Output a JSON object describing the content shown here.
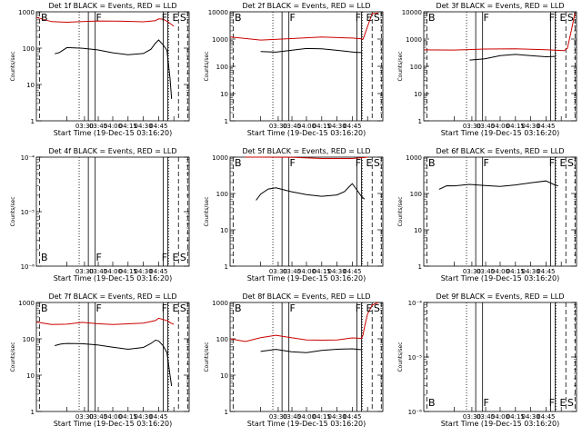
{
  "chart_data": [
    {
      "type": "line",
      "title": "Det 1f BLACK = Events, RED = LLD",
      "xlabel": "Start Time (19-Dec-15 03:16:20)",
      "ylabel": "Counts/sec",
      "yscale": "log",
      "ylim": [
        1,
        1000
      ],
      "ytick_labels": [
        "1",
        "10",
        "100",
        "1000"
      ],
      "xtick_labels": [
        "03:30",
        "03:45",
        "04:00",
        "04:15",
        "04:30",
        "04:45"
      ],
      "markers": [
        "B",
        "F",
        "F",
        "E",
        "S"
      ],
      "series": [
        {
          "color": "#000000",
          "x": [
            0.12,
            0.15,
            0.2,
            0.3,
            0.4,
            0.5,
            0.6,
            0.7,
            0.75,
            0.78,
            0.8,
            0.83,
            0.855,
            0.875,
            0.885
          ],
          "y": [
            70,
            80,
            110,
            100,
            85,
            70,
            65,
            75,
            100,
            140,
            160,
            115,
            85,
            15,
            4
          ]
        },
        {
          "color": "#cc0000",
          "x": [
            0.0,
            0.1,
            0.2,
            0.3,
            0.4,
            0.5,
            0.6,
            0.7,
            0.78,
            0.8,
            0.83,
            0.86,
            0.88,
            0.9
          ],
          "y": [
            700,
            570,
            550,
            540,
            530,
            520,
            540,
            560,
            610,
            650,
            600,
            500,
            450,
            400
          ]
        }
      ]
    },
    {
      "type": "line",
      "title": "Det 2f BLACK = Events, RED = LLD",
      "xlabel": "Start Time (19-Dec-15 03:16:20)",
      "ylabel": "Counts/sec",
      "yscale": "log",
      "ylim": [
        1,
        10000
      ],
      "ytick_labels": [
        "1",
        "10",
        "100",
        "1000",
        "10000"
      ],
      "xtick_labels": [
        "03:30",
        "03:45",
        "04:00",
        "04:15",
        "04:30",
        "04:45"
      ],
      "markers": [
        "B",
        "F",
        "F",
        "E",
        "S"
      ],
      "series": [
        {
          "color": "#000000",
          "x": [
            0.2,
            0.3,
            0.4,
            0.5,
            0.6,
            0.7,
            0.8,
            0.84,
            0.86
          ],
          "y": [
            350,
            360,
            390,
            420,
            400,
            380,
            360,
            350,
            320
          ]
        },
        {
          "color": "#cc0000",
          "x": [
            0.0,
            0.2,
            0.4,
            0.6,
            0.8,
            0.86,
            0.87,
            0.88,
            0.9,
            0.93,
            0.97
          ],
          "y": [
            1200,
            1000,
            1050,
            1100,
            1000,
            1000,
            1050,
            1500,
            3000,
            8000,
            9000
          ]
        }
      ]
    },
    {
      "type": "line",
      "title": "Det 3f BLACK = Events, RED = LLD",
      "xlabel": "Start Time (19-Dec-15 03:16:20)",
      "ylabel": "Counts/sec",
      "yscale": "log",
      "ylim": [
        1,
        10000
      ],
      "ytick_labels": [
        "1",
        "10",
        "100",
        "1000",
        "10000"
      ],
      "xtick_labels": [
        "03:30",
        "03:45",
        "04:00",
        "04:15",
        "04:30",
        "04:45"
      ],
      "markers": [
        "B",
        "F",
        "F",
        "E",
        "S"
      ],
      "series": [
        {
          "color": "#000000",
          "x": [
            0.3,
            0.4,
            0.5,
            0.6,
            0.7,
            0.8,
            0.86
          ],
          "y": [
            170,
            190,
            230,
            250,
            240,
            240,
            230
          ]
        },
        {
          "color": "#cc0000",
          "x": [
            0.0,
            0.2,
            0.4,
            0.6,
            0.8,
            0.92,
            0.94,
            0.96,
            0.99
          ],
          "y": [
            400,
            400,
            400,
            400,
            400,
            400,
            500,
            1500,
            9000
          ]
        }
      ]
    },
    {
      "type": "line",
      "title": "Det 4f BLACK = Events, RED = LLD",
      "xlabel": "Start Time (19-Dec-15 03:16:20)",
      "ylabel": "Counts/sec",
      "yscale": "log",
      "ylim": [
        1e-06,
        0.0001
      ],
      "ytick_labels": [
        "10⁻⁶",
        "10⁻⁵",
        "10⁻⁴"
      ],
      "xtick_labels": [
        "03:30",
        "03:45",
        "04:00",
        "04:15",
        "04:30",
        "04:45"
      ],
      "markers": [
        "B",
        "F",
        "F",
        "E",
        "S"
      ],
      "series": []
    },
    {
      "type": "line",
      "title": "Det 5f BLACK = Events, RED = LLD",
      "xlabel": "Start Time (19-Dec-15 03:16:20)",
      "ylabel": "Counts/sec",
      "yscale": "log",
      "ylim": [
        1,
        1000
      ],
      "ytick_labels": [
        "1",
        "10",
        "100",
        "1000"
      ],
      "xtick_labels": [
        "03:30",
        "03:45",
        "04:00",
        "04:15",
        "04:30",
        "04:45"
      ],
      "markers": [
        "B",
        "F",
        "F",
        "E",
        "S"
      ],
      "series": [
        {
          "color": "#000000",
          "x": [
            0.17,
            0.2,
            0.25,
            0.3,
            0.4,
            0.5,
            0.6,
            0.7,
            0.75,
            0.78,
            0.8,
            0.83,
            0.86,
            0.88
          ],
          "y": [
            65,
            90,
            130,
            150,
            120,
            95,
            80,
            85,
            110,
            160,
            200,
            130,
            80,
            70
          ]
        },
        {
          "color": "#cc0000",
          "x": [
            0.1,
            0.2,
            0.4,
            0.6,
            0.8,
            0.88,
            0.9
          ],
          "y": [
            1000,
            1000,
            980,
            960,
            980,
            1000,
            1000
          ]
        }
      ]
    },
    {
      "type": "line",
      "title": "Det 6f BLACK = Events, RED = LLD",
      "xlabel": "Start Time (19-Dec-15 03:16:20)",
      "ylabel": "Counts/sec",
      "yscale": "log",
      "ylim": [
        1,
        1000
      ],
      "ytick_labels": [
        "1",
        "10",
        "100",
        "1000"
      ],
      "xtick_labels": [
        "03:30",
        "03:45",
        "04:00",
        "04:15",
        "04:30",
        "04:45"
      ],
      "markers": [
        "B",
        "F",
        "F",
        "E",
        "S"
      ],
      "series": [
        {
          "color": "#000000",
          "x": [
            0.1,
            0.15,
            0.2,
            0.3,
            0.4,
            0.5,
            0.6,
            0.7,
            0.8,
            0.85,
            0.88
          ],
          "y": [
            130,
            160,
            170,
            190,
            170,
            150,
            160,
            190,
            230,
            190,
            160
          ]
        }
      ]
    },
    {
      "type": "line",
      "title": "Det 7f BLACK = Events, RED = LLD",
      "xlabel": "Start Time (19-Dec-15 03:16:20)",
      "ylabel": "Counts/sec",
      "yscale": "log",
      "ylim": [
        1,
        1000
      ],
      "ytick_labels": [
        "1",
        "10",
        "100",
        "1000"
      ],
      "xtick_labels": [
        "03:30",
        "03:45",
        "04:00",
        "04:15",
        "04:30",
        "04:45"
      ],
      "markers": [
        "B",
        "F",
        "F",
        "E",
        "S"
      ],
      "series": [
        {
          "color": "#000000",
          "x": [
            0.12,
            0.16,
            0.2,
            0.3,
            0.4,
            0.5,
            0.6,
            0.7,
            0.75,
            0.78,
            0.8,
            0.83,
            0.855,
            0.875,
            0.885
          ],
          "y": [
            65,
            75,
            80,
            75,
            65,
            55,
            50,
            60,
            80,
            95,
            85,
            60,
            40,
            10,
            5
          ]
        },
        {
          "color": "#cc0000",
          "x": [
            0.0,
            0.1,
            0.2,
            0.3,
            0.4,
            0.5,
            0.6,
            0.7,
            0.78,
            0.8,
            0.83,
            0.86,
            0.88,
            0.9
          ],
          "y": [
            290,
            260,
            270,
            290,
            250,
            230,
            250,
            280,
            340,
            380,
            330,
            290,
            260,
            250
          ]
        }
      ]
    },
    {
      "type": "line",
      "title": "Det 8f BLACK = Events, RED = LLD",
      "xlabel": "Start Time (19-Dec-15 03:16:20)",
      "ylabel": "Counts/sec",
      "yscale": "log",
      "ylim": [
        1,
        1000
      ],
      "ytick_labels": [
        "1",
        "10",
        "100",
        "1000"
      ],
      "xtick_labels": [
        "03:30",
        "03:45",
        "04:00",
        "04:15",
        "04:30",
        "04:45"
      ],
      "markers": [
        "B",
        "F",
        "F",
        "E",
        "S"
      ],
      "series": [
        {
          "color": "#000000",
          "x": [
            0.2,
            0.3,
            0.4,
            0.5,
            0.6,
            0.7,
            0.8,
            0.86
          ],
          "y": [
            45,
            55,
            45,
            40,
            45,
            50,
            55,
            50
          ]
        },
        {
          "color": "#cc0000",
          "x": [
            0.0,
            0.1,
            0.2,
            0.3,
            0.4,
            0.5,
            0.6,
            0.7,
            0.8,
            0.86,
            0.87,
            0.88,
            0.9,
            0.93,
            0.97
          ],
          "y": [
            100,
            90,
            110,
            120,
            100,
            90,
            95,
            100,
            110,
            100,
            120,
            200,
            500,
            900,
            1000
          ]
        }
      ]
    },
    {
      "type": "line",
      "title": "Det 9f BLACK = Events, RED = LLD",
      "xlabel": "Start Time (19-Dec-15 03:16:20)",
      "ylabel": "Counts/sec",
      "yscale": "log",
      "ylim": [
        1e-06,
        0.0001
      ],
      "ytick_labels": [
        "10⁻⁶",
        "10⁻⁵",
        "10⁻⁴"
      ],
      "xtick_labels": [
        "03:30",
        "03:45",
        "04:00",
        "04:15",
        "04:30",
        "04:45"
      ],
      "markers": [
        "B",
        "F",
        "F",
        "E",
        "S"
      ],
      "series": []
    }
  ]
}
